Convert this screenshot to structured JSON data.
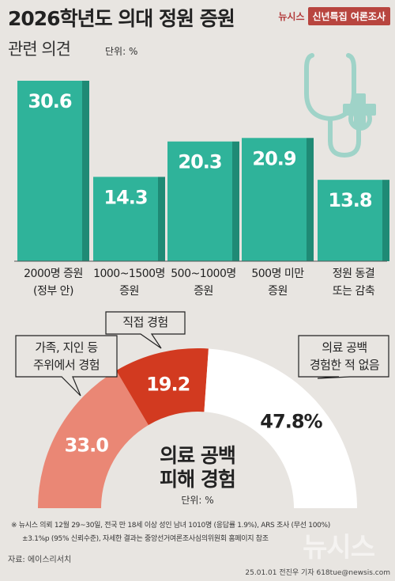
{
  "header": {
    "title": "2026학년도 의대 정원 증원",
    "subtitle": "관련 의견",
    "unit": "단위: %"
  },
  "brand": {
    "name": "뉴시스",
    "badge": "신년특집 여론조사"
  },
  "colors": {
    "bar": "#2fb39a",
    "bar_side": "#1f8a75",
    "donut_outer": "#ea8775",
    "donut_mid": "#d23a20",
    "donut_white": "#ffffff",
    "icon": "#9fd3c8"
  },
  "icon": "stethoscope-plus-icon",
  "chart_data": [
    {
      "type": "bar",
      "categories": [
        "2000명 증원\n(정부 안)",
        "1000~1500명\n증원",
        "500~1000명\n증원",
        "500명 미만\n증원",
        "정원 동결\n또는 감축"
      ],
      "values": [
        30.6,
        14.3,
        20.3,
        20.9,
        13.8
      ],
      "value_labels": [
        "30.6",
        "14.3",
        "20.3",
        "20.9",
        "13.8"
      ],
      "ylim": [
        0,
        32
      ]
    },
    {
      "type": "pie",
      "title": "의료 공백\n피해 경험",
      "unit": "단위: %",
      "categories": [
        "가족, 지인 등\n주위에서 경험",
        "직접 경험",
        "의료 공백\n경험한 적 없음"
      ],
      "values": [
        33.0,
        19.2,
        47.8
      ],
      "value_labels": [
        "33.0",
        "19.2",
        "47.8%"
      ]
    }
  ],
  "footnote": {
    "line1": "※ 뉴시스 의뢰 12월 29~30일, 전국 만 18세 이상 성인 남녀 1010명 (응답률 1.9%), ARS 조사 (무선 100%)",
    "line2": "±3.1%p (95% 신뢰수준), 자세한 결과는 중앙선거여론조사심의위원회 홈페이지 참조"
  },
  "source": "자료: 에이스리서치",
  "watermark": "뉴시스",
  "credit": "25.01.01 전진우 기자 618tue@newsis.com"
}
